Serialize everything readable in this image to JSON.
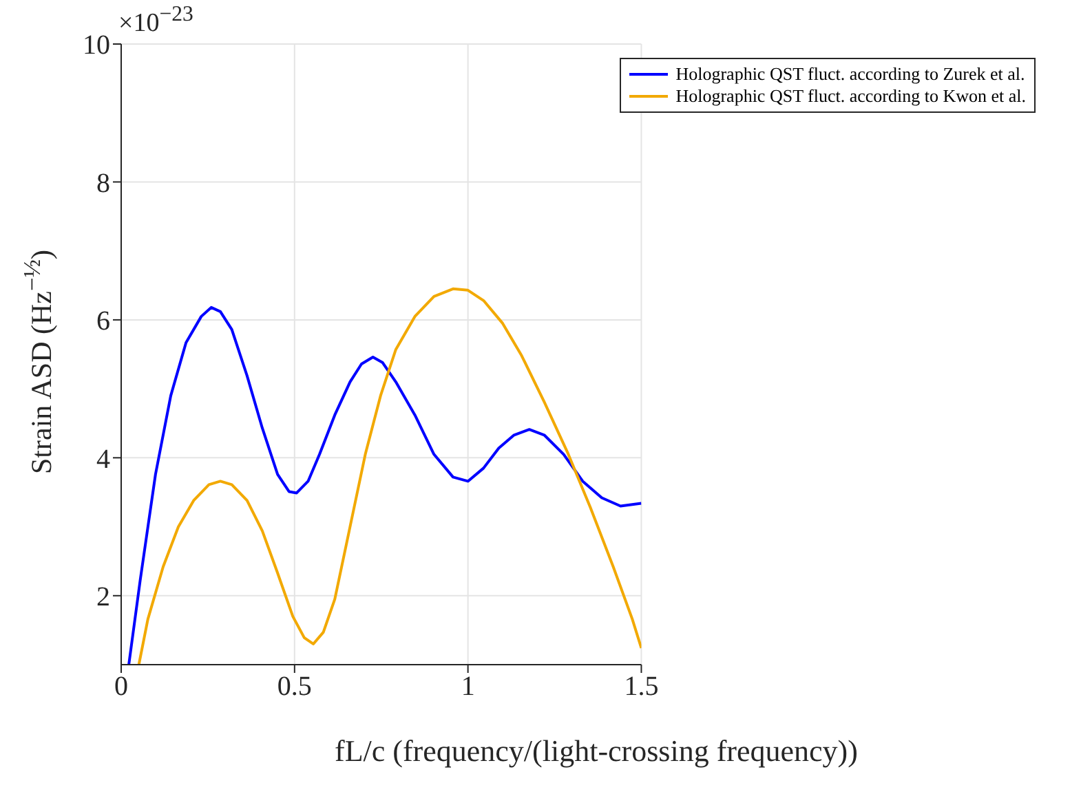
{
  "chart_data": {
    "type": "line",
    "xlabel": "fL/c (frequency/(light-crossing frequency))",
    "ylabel": "Strain ASD (Hz$^{−½}$)",
    "annotations": [
      "×10$^{−23}$"
    ],
    "xlim": [
      0,
      1.5
    ],
    "xticks": [
      0,
      0.5,
      1,
      1.5
    ],
    "ylim": [
      1,
      10
    ],
    "yticks": [
      2,
      4,
      6,
      8,
      10
    ],
    "grid": true,
    "legend": "top right",
    "marker": "none",
    "line_style": "solid",
    "series": [
      {
        "name": "Holographic QST fluct. according to Zurek et al.",
        "color": "#0000ff",
        "x": [
          0.022,
          0.055,
          0.099,
          0.143,
          0.187,
          0.231,
          0.26,
          0.286,
          0.319,
          0.363,
          0.407,
          0.451,
          0.484,
          0.506,
          0.539,
          0.572,
          0.616,
          0.66,
          0.693,
          0.726,
          0.754,
          0.792,
          0.847,
          0.902,
          0.957,
          1.0,
          1.045,
          1.089,
          1.133,
          1.177,
          1.22,
          1.276,
          1.331,
          1.386,
          1.44,
          1.5
        ],
        "values": [
          1.0,
          2.23,
          3.76,
          4.9,
          5.67,
          6.05,
          6.18,
          6.12,
          5.86,
          5.19,
          4.43,
          3.76,
          3.51,
          3.49,
          3.66,
          4.05,
          4.62,
          5.1,
          5.36,
          5.46,
          5.38,
          5.1,
          4.62,
          4.05,
          3.72,
          3.66,
          3.85,
          4.14,
          4.33,
          4.41,
          4.33,
          4.05,
          3.66,
          3.42,
          3.3,
          3.34
        ]
      },
      {
        "name": "Holographic QST fluct. according to Kwon et al.",
        "color": "#f2a900",
        "x": [
          0.051,
          0.077,
          0.121,
          0.165,
          0.209,
          0.253,
          0.286,
          0.319,
          0.363,
          0.407,
          0.451,
          0.495,
          0.528,
          0.554,
          0.583,
          0.616,
          0.66,
          0.704,
          0.748,
          0.792,
          0.847,
          0.902,
          0.957,
          1.0,
          1.045,
          1.1,
          1.155,
          1.22,
          1.287,
          1.353,
          1.419,
          1.474,
          1.5
        ],
        "values": [
          1.0,
          1.66,
          2.42,
          3.0,
          3.38,
          3.61,
          3.66,
          3.61,
          3.38,
          2.94,
          2.33,
          1.7,
          1.39,
          1.3,
          1.47,
          1.95,
          3.0,
          4.05,
          4.9,
          5.57,
          6.05,
          6.34,
          6.45,
          6.43,
          6.28,
          5.95,
          5.48,
          4.81,
          4.08,
          3.28,
          2.42,
          1.66,
          1.24
        ]
      }
    ]
  }
}
